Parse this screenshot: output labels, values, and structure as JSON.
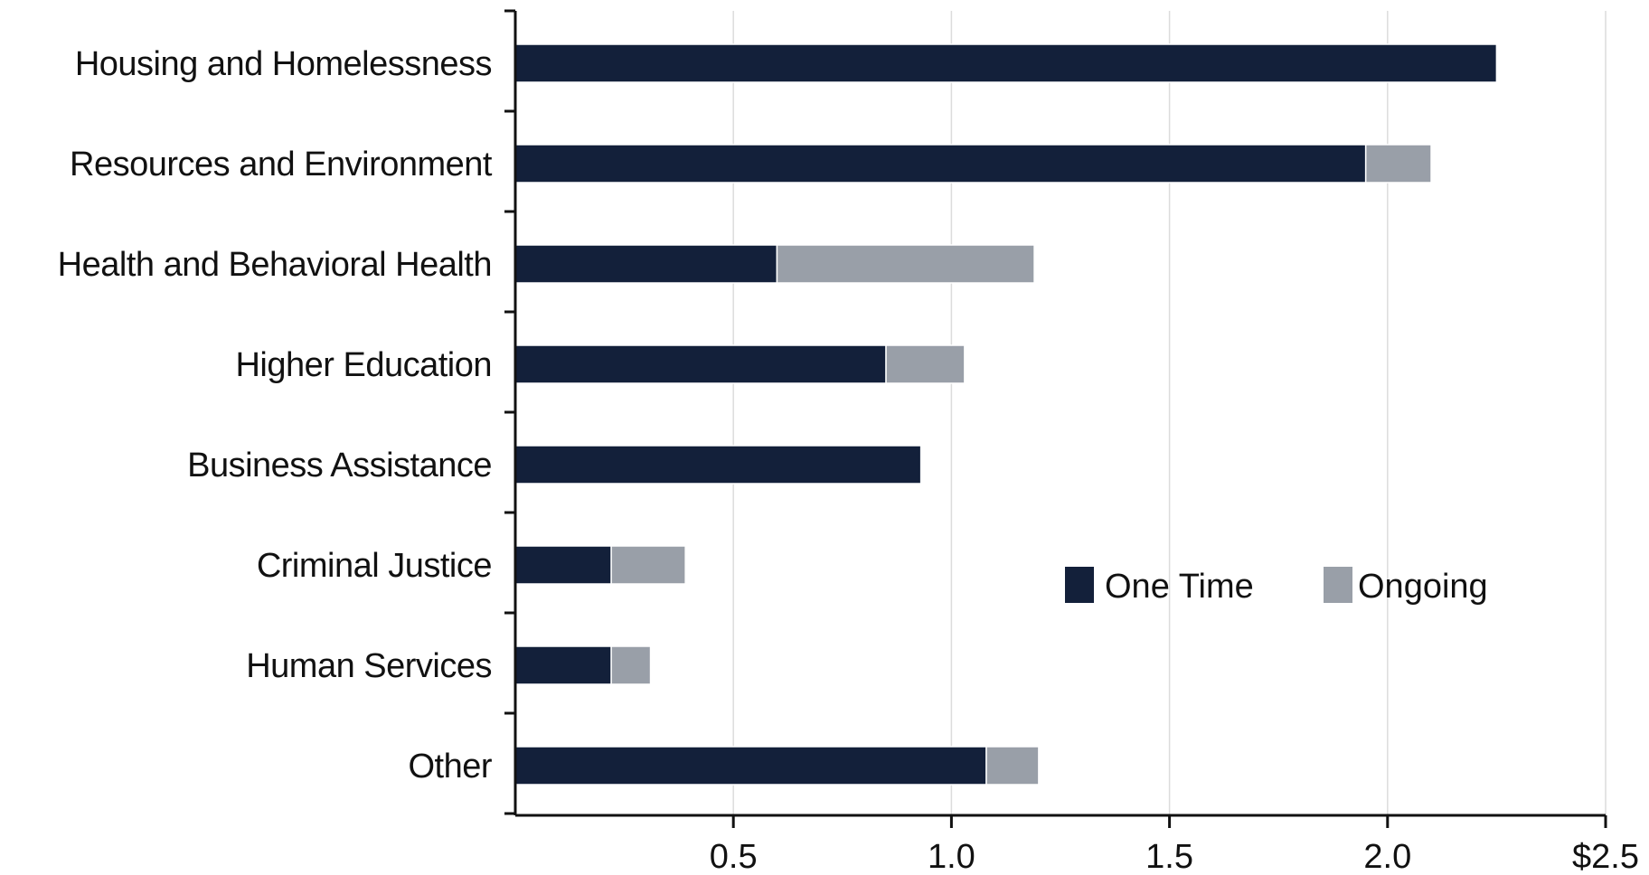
{
  "chart_data": {
    "type": "bar",
    "orientation": "horizontal",
    "stacked": true,
    "categories": [
      "Housing and Homelessness",
      "Resources and Environment",
      "Health and Behavioral Health",
      "Higher Education",
      "Business Assistance",
      "Criminal Justice",
      "Human Services",
      "Other"
    ],
    "series": [
      {
        "name": "One Time",
        "color": "#13203a",
        "values": [
          2.25,
          1.95,
          0.6,
          0.85,
          0.93,
          0.22,
          0.22,
          1.08
        ]
      },
      {
        "name": "Ongoing",
        "color": "#999fa8",
        "values": [
          0.0,
          0.15,
          0.59,
          0.18,
          0.0,
          0.17,
          0.09,
          0.12
        ]
      }
    ],
    "xlim": [
      0,
      2.5
    ],
    "xticks": [
      0.5,
      1.0,
      1.5,
      2.0,
      2.5
    ],
    "xtick_labels": [
      "0.5",
      "1.0",
      "1.5",
      "2.0",
      "$2.5"
    ],
    "grid": true,
    "legend_position": "right"
  }
}
